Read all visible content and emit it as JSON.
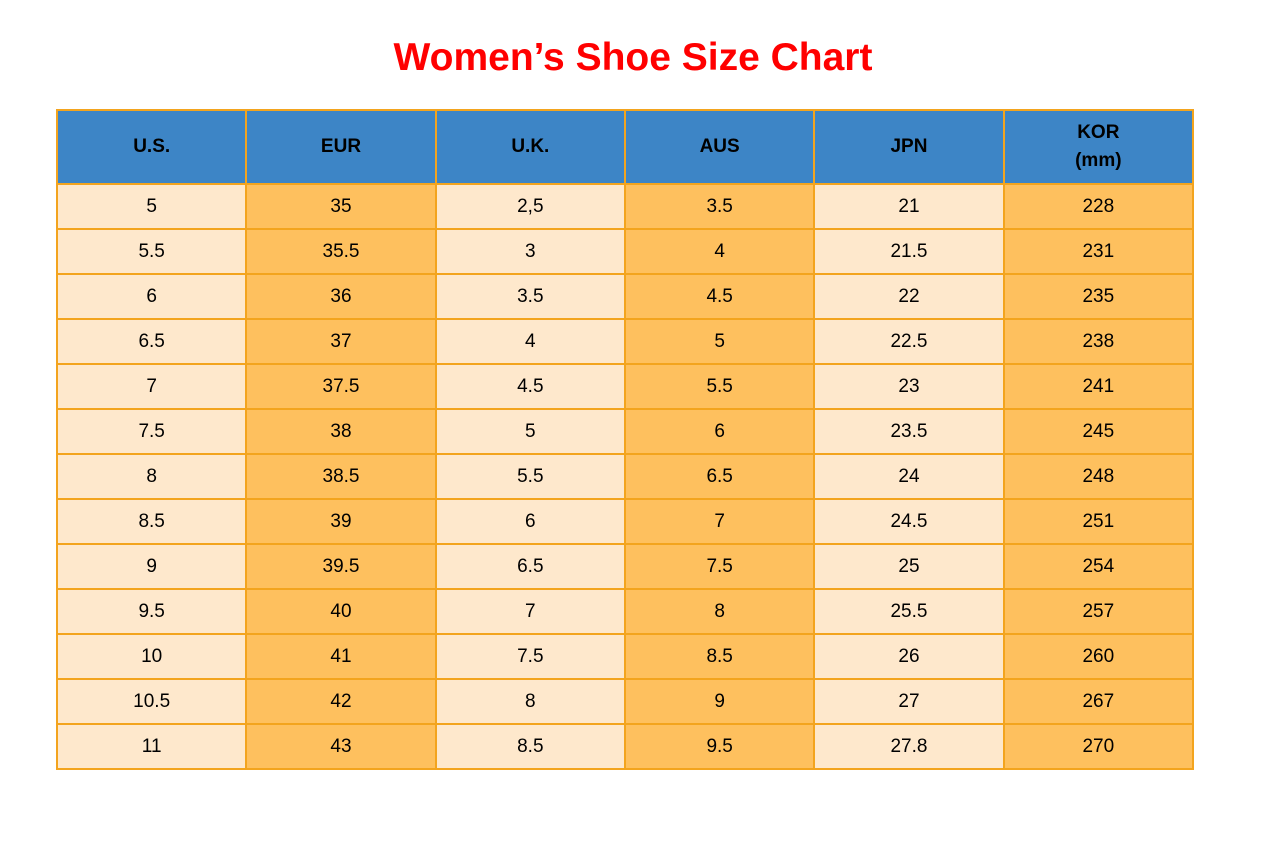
{
  "title": "Women’s Shoe Size Chart",
  "colors": {
    "title": "#FF0000",
    "header_bg": "#3D85C6",
    "header_text": "#000000",
    "cell_cream": "#FEE8CC",
    "cell_orange": "#FEC05E",
    "border": "#F3A41E",
    "cell_text": "#000000",
    "background": "#FFFFFF"
  },
  "table": {
    "header_labels": [
      "U.S.",
      "EUR",
      "U.K.",
      "AUS",
      "JPN",
      "KOR\n(mm)"
    ]
  },
  "chart_data": {
    "type": "table",
    "title": "Women’s Shoe Size Chart",
    "columns": [
      "U.S.",
      "EUR",
      "U.K.",
      "AUS",
      "JPN",
      "KOR (mm)"
    ],
    "rows": [
      [
        "5",
        "35",
        "2,5",
        "3.5",
        "21",
        "228"
      ],
      [
        "5.5",
        "35.5",
        "3",
        "4",
        "21.5",
        "231"
      ],
      [
        "6",
        "36",
        "3.5",
        "4.5",
        "22",
        "235"
      ],
      [
        "6.5",
        "37",
        "4",
        "5",
        "22.5",
        "238"
      ],
      [
        "7",
        "37.5",
        "4.5",
        "5.5",
        "23",
        "241"
      ],
      [
        "7.5",
        "38",
        "5",
        "6",
        "23.5",
        "245"
      ],
      [
        "8",
        "38.5",
        "5.5",
        "6.5",
        "24",
        "248"
      ],
      [
        "8.5",
        "39",
        "6",
        "7",
        "24.5",
        "251"
      ],
      [
        "9",
        "39.5",
        "6.5",
        "7.5",
        "25",
        "254"
      ],
      [
        "9.5",
        "40",
        "7",
        "8",
        "25.5",
        "257"
      ],
      [
        "10",
        "41",
        "7.5",
        "8.5",
        "26",
        "260"
      ],
      [
        "10.5",
        "42",
        "8",
        "9",
        "27",
        "267"
      ],
      [
        "11",
        "43",
        "8.5",
        "9.5",
        "27.8",
        "270"
      ]
    ],
    "layout": {
      "grid": true,
      "header_position": "top",
      "column_fill_pattern": [
        "cream",
        "orange",
        "cream",
        "orange",
        "cream",
        "orange"
      ]
    }
  }
}
